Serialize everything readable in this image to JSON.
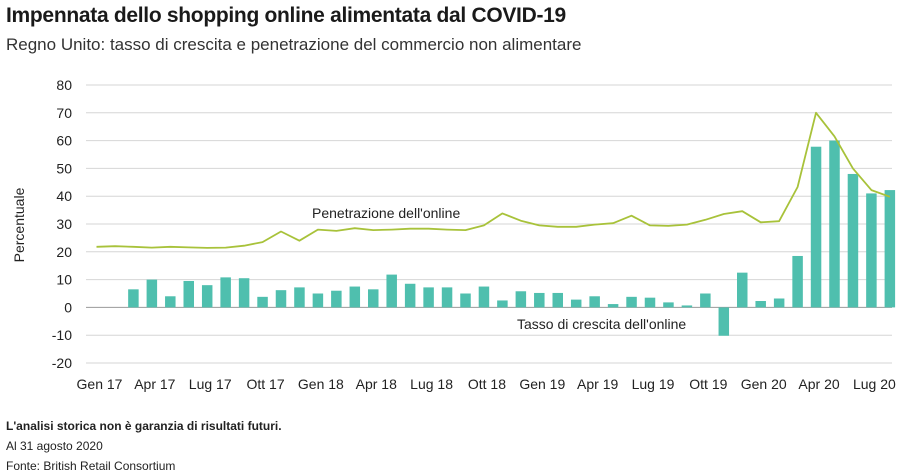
{
  "header": {
    "title": "Impennata dello shopping online alimentata dal COVID-19",
    "subtitle": "Regno Unito: tasso di crescita e penetrazione del commercio non alimentare"
  },
  "footer": {
    "disclaimer": "L'analisi storica non è garanzia di risultati futuri.",
    "date_note": "Al 31 agosto 2020",
    "source": "Fonte: British Retail Consortium"
  },
  "colors": {
    "bar": "#4fbfae",
    "line": "#a8c23a",
    "grid": "#d6d6d6",
    "axis_text": "#222222"
  },
  "chart_data": {
    "type": "bar",
    "ylabel": "Percentuale",
    "ylim": [
      -20,
      80
    ],
    "yticks": [
      -20,
      -10,
      0,
      10,
      20,
      30,
      40,
      50,
      60,
      70,
      80
    ],
    "xtick_labels": [
      {
        "index": 0,
        "label": "Gen 17"
      },
      {
        "index": 3,
        "label": "Apr 17"
      },
      {
        "index": 6,
        "label": "Lug 17"
      },
      {
        "index": 9,
        "label": "Ott 17"
      },
      {
        "index": 12,
        "label": "Gen 18"
      },
      {
        "index": 15,
        "label": "Apr 18"
      },
      {
        "index": 18,
        "label": "Lug 18"
      },
      {
        "index": 21,
        "label": "Ott 18"
      },
      {
        "index": 24,
        "label": "Gen 19"
      },
      {
        "index": 27,
        "label": "Apr 19"
      },
      {
        "index": 30,
        "label": "Lug 19"
      },
      {
        "index": 33,
        "label": "Ott 19"
      },
      {
        "index": 36,
        "label": "Gen 20"
      },
      {
        "index": 39,
        "label": "Apr 20"
      },
      {
        "index": 42,
        "label": "Lug 20"
      }
    ],
    "grid": true,
    "series": [
      {
        "name": "Tasso di crescita dell'online",
        "type": "bar",
        "values": [
          null,
          null,
          6.5,
          10,
          4,
          9.5,
          8,
          10.8,
          10.5,
          3.8,
          6.2,
          7.2,
          5,
          6,
          7.5,
          6.5,
          11.8,
          8.5,
          7.2,
          7.2,
          5,
          7.5,
          2.5,
          5.8,
          5.2,
          5.2,
          2.8,
          4,
          1.2,
          3.8,
          3.5,
          1.8,
          0.7,
          5,
          -10.2,
          12.5,
          2.3,
          3.2,
          18.5,
          57.8,
          60,
          48,
          41,
          42.2
        ]
      },
      {
        "name": "Penetrazione dell'online",
        "type": "line",
        "values": [
          21.8,
          22,
          21.8,
          21.5,
          21.8,
          21.6,
          21.4,
          21.5,
          22.2,
          23.5,
          27.3,
          24,
          28,
          27.5,
          28.5,
          27.8,
          28,
          28.3,
          28.3,
          28,
          27.8,
          29.5,
          33.8,
          31.2,
          29.5,
          29,
          29,
          29.8,
          30.3,
          33,
          29.5,
          29.3,
          29.8,
          31.5,
          33.6,
          34.6,
          30.6,
          31,
          43.3,
          70,
          61.5,
          50,
          42.2,
          39.8
        ]
      }
    ],
    "annotations": [
      {
        "text": "Penetrazione dell'online",
        "series": "Penetrazione dell'online"
      },
      {
        "text": "Tasso di crescita dell'online",
        "series": "Tasso di crescita dell'online"
      }
    ]
  }
}
